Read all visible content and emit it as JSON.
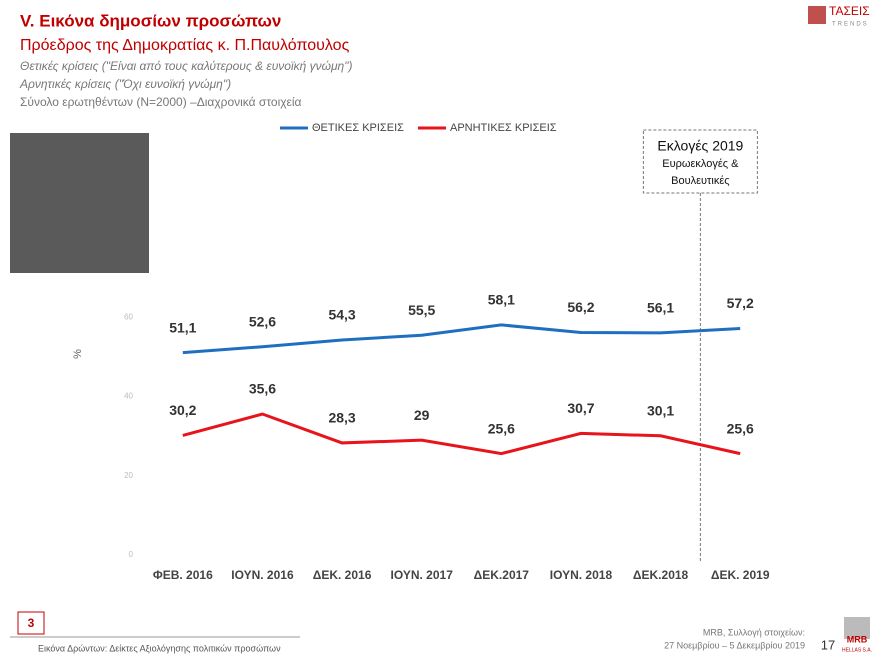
{
  "header": {
    "title": "V. Εικόνα δημοσίων προσώπων",
    "subtitle": "Πρόεδρος της Δημοκρατίας κ. Π.Παυλόπουλος",
    "notes": [
      "Θετικές κρίσεις (\"Είναι από τους καλύτερους & ευνοϊκή γνώμη\")",
      "Αρνητικές κρίσεις (\"Όχι ευνοϊκή γνώμη\")"
    ],
    "base": "Σύνολο ερωτηθέντων (N=2000) –Διαχρονικά στοιχεία",
    "logo": {
      "name": "ΤΑΣΕΙΣ",
      "sub": "TRENDS"
    }
  },
  "chart_data": {
    "type": "line",
    "categories": [
      "ΦΕΒ. 2016",
      "ΙΟΥΝ. 2016",
      "ΔΕΚ. 2016",
      "ΙΟΥΝ. 2017",
      "ΔΕΚ.2017",
      "ΙΟΥΝ. 2018",
      "ΔΕΚ.2018",
      "ΔΕΚ. 2019"
    ],
    "series": [
      {
        "name": "ΘΕΤΙΚΕΣ ΚΡΙΣΕΙΣ",
        "color": "#1f6fc0",
        "values": [
          51.1,
          52.6,
          54.3,
          55.5,
          58.1,
          56.2,
          56.1,
          57.2
        ],
        "value_labels": [
          "51,1",
          "52,6",
          "54,3",
          "55,5",
          "58,1",
          "56,2",
          "56,1",
          "57,2"
        ]
      },
      {
        "name": "ΑΡΝΗΤΙΚΕΣ ΚΡΙΣΕΙΣ",
        "color": "#e8141b",
        "values": [
          30.2,
          35.6,
          28.3,
          29,
          25.6,
          30.7,
          30.1,
          25.6
        ],
        "value_labels": [
          "30,2",
          "35,6",
          "28,3",
          "29",
          "25,6",
          "30,7",
          "30,1",
          "25,6"
        ]
      }
    ],
    "ylabel": "%",
    "ylim": [
      0,
      100
    ],
    "yticks": [
      0,
      20,
      40,
      60
    ],
    "grid": false,
    "legend": "top",
    "annotation": {
      "title": "Εκλογές 2019",
      "lines": [
        "Ευρωεκλογές &",
        "Βουλευτικές"
      ]
    }
  },
  "footer": {
    "page_box": "3",
    "caption": "Εικόνα Δρώντων: Δείκτες Αξιολόγησης πολιτικών προσώπων",
    "source": "MRB, Συλλογή στοιχείων:",
    "dates": "27 Νοεμβρίου – 5 Δεκεμβρίου 2019",
    "page": "17",
    "brand": "MRB",
    "brand_sub": "HELLAS S.A."
  }
}
